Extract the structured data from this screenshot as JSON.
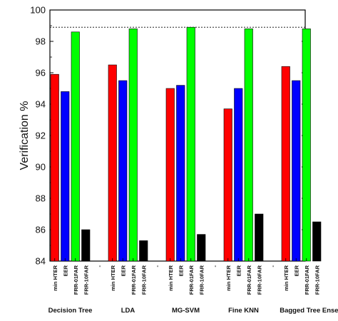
{
  "chart_data": {
    "type": "bar",
    "ylabel": "Verification %",
    "ylim": [
      84,
      100
    ],
    "yticks": [
      84,
      86,
      88,
      90,
      92,
      94,
      96,
      98,
      100
    ],
    "reference_line": {
      "value": 98.9,
      "style": "dotted"
    },
    "groups": [
      {
        "name": "Decision Tree",
        "bars": [
          {
            "label": "min HTER",
            "value": 95.9,
            "color": "#ff0000"
          },
          {
            "label": "EER",
            "value": 94.8,
            "color": "#0000ff"
          },
          {
            "label": "FRR-01FAR",
            "value": 98.6,
            "color": "#00ff00"
          },
          {
            "label": "FRR-10FAR",
            "value": 86.0,
            "color": "#000000"
          }
        ]
      },
      {
        "name": "LDA",
        "bars": [
          {
            "label": "min HTER",
            "value": 96.5,
            "color": "#ff0000"
          },
          {
            "label": "EER",
            "value": 95.5,
            "color": "#0000ff"
          },
          {
            "label": "FRR-01FAR",
            "value": 98.8,
            "color": "#00ff00"
          },
          {
            "label": "FRR-10FAR",
            "value": 85.3,
            "color": "#000000"
          }
        ]
      },
      {
        "name": "MG-SVM",
        "bars": [
          {
            "label": "min HTER",
            "value": 95.0,
            "color": "#ff0000"
          },
          {
            "label": "EER",
            "value": 95.2,
            "color": "#0000ff"
          },
          {
            "label": "FRR-01FAR",
            "value": 98.9,
            "color": "#00ff00"
          },
          {
            "label": "FRR-10FAR",
            "value": 85.7,
            "color": "#000000"
          }
        ]
      },
      {
        "name": "Fine KNN",
        "bars": [
          {
            "label": "min HTER",
            "value": 93.7,
            "color": "#ff0000"
          },
          {
            "label": "EER",
            "value": 95.0,
            "color": "#0000ff"
          },
          {
            "label": "FRR-01FAR",
            "value": 98.8,
            "color": "#00ff00"
          },
          {
            "label": "FRR-10FAR",
            "value": 87.0,
            "color": "#000000"
          }
        ]
      },
      {
        "name": "Bagged Tree Ensemble",
        "bars": [
          {
            "label": "min HTER",
            "value": 96.4,
            "color": "#ff0000"
          },
          {
            "label": "EER",
            "value": 95.5,
            "color": "#0000ff"
          },
          {
            "label": "FRR-01FAR",
            "value": 98.8,
            "color": "#00ff00"
          },
          {
            "label": "FRR-10FAR",
            "value": 86.5,
            "color": "#000000"
          }
        ]
      }
    ],
    "separator_label": "-",
    "grid": false,
    "legend": "none"
  }
}
